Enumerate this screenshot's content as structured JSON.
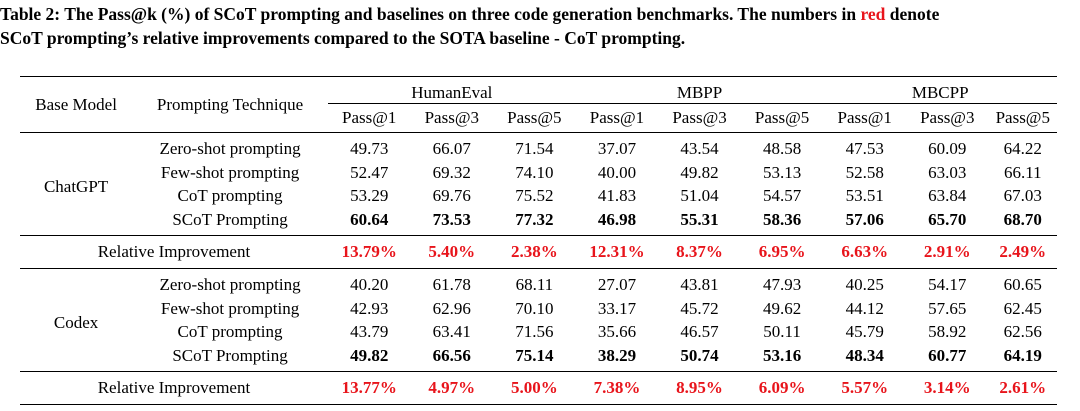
{
  "caption": {
    "part1": "Table 2: The Pass@k (%) of SCoT prompting and baselines on three code generation benchmarks. The numbers in ",
    "red_word": "red",
    "part2": " denote",
    "line2": "SCoT prompting’s relative improvements compared to the SOTA baseline - CoT prompting.",
    "accent_color": "#e8141b"
  },
  "table": {
    "col_base_model": "Base Model",
    "col_technique": "Prompting Technique",
    "benchmarks": [
      "HumanEval",
      "MBPP",
      "MBCPP"
    ],
    "metrics": [
      "Pass@1",
      "Pass@3",
      "Pass@5",
      "Pass@1",
      "Pass@3",
      "Pass@5",
      "Pass@1",
      "Pass@3",
      "Pass@5"
    ],
    "groups": [
      {
        "model": "ChatGPT",
        "rows": [
          {
            "technique": "Zero-shot prompting",
            "values": [
              "49.73",
              "66.07",
              "71.54",
              "37.07",
              "43.54",
              "48.58",
              "47.53",
              "60.09",
              "64.22"
            ]
          },
          {
            "technique": "Few-shot prompting",
            "values": [
              "52.47",
              "69.32",
              "74.10",
              "40.00",
              "49.82",
              "53.13",
              "52.58",
              "63.03",
              "66.11"
            ]
          },
          {
            "technique": "CoT prompting",
            "values": [
              "53.29",
              "69.76",
              "75.52",
              "41.83",
              "51.04",
              "54.57",
              "53.51",
              "63.84",
              "67.03"
            ]
          },
          {
            "technique": "SCoT Prompting",
            "values": [
              "60.64",
              "73.53",
              "77.32",
              "46.98",
              "55.31",
              "58.36",
              "57.06",
              "65.70",
              "68.70"
            ]
          }
        ],
        "relative_label": "Relative Improvement",
        "relative": [
          "13.79%",
          "5.40%",
          "2.38%",
          "12.31%",
          "8.37%",
          "6.95%",
          "6.63%",
          "2.91%",
          "2.49%"
        ]
      },
      {
        "model": "Codex",
        "rows": [
          {
            "technique": "Zero-shot prompting",
            "values": [
              "40.20",
              "61.78",
              "68.11",
              "27.07",
              "43.81",
              "47.93",
              "40.25",
              "54.17",
              "60.65"
            ]
          },
          {
            "technique": "Few-shot prompting",
            "values": [
              "42.93",
              "62.96",
              "70.10",
              "33.17",
              "45.72",
              "49.62",
              "44.12",
              "57.65",
              "62.45"
            ]
          },
          {
            "technique": "CoT prompting",
            "values": [
              "43.79",
              "63.41",
              "71.56",
              "35.66",
              "46.57",
              "50.11",
              "45.79",
              "58.92",
              "62.56"
            ]
          },
          {
            "technique": "SCoT Prompting",
            "values": [
              "49.82",
              "66.56",
              "75.14",
              "38.29",
              "50.74",
              "53.16",
              "48.34",
              "60.77",
              "64.19"
            ]
          }
        ],
        "relative_label": "Relative Improvement",
        "relative": [
          "13.77%",
          "4.97%",
          "5.00%",
          "7.38%",
          "8.95%",
          "6.09%",
          "5.57%",
          "3.14%",
          "2.61%"
        ]
      }
    ]
  }
}
